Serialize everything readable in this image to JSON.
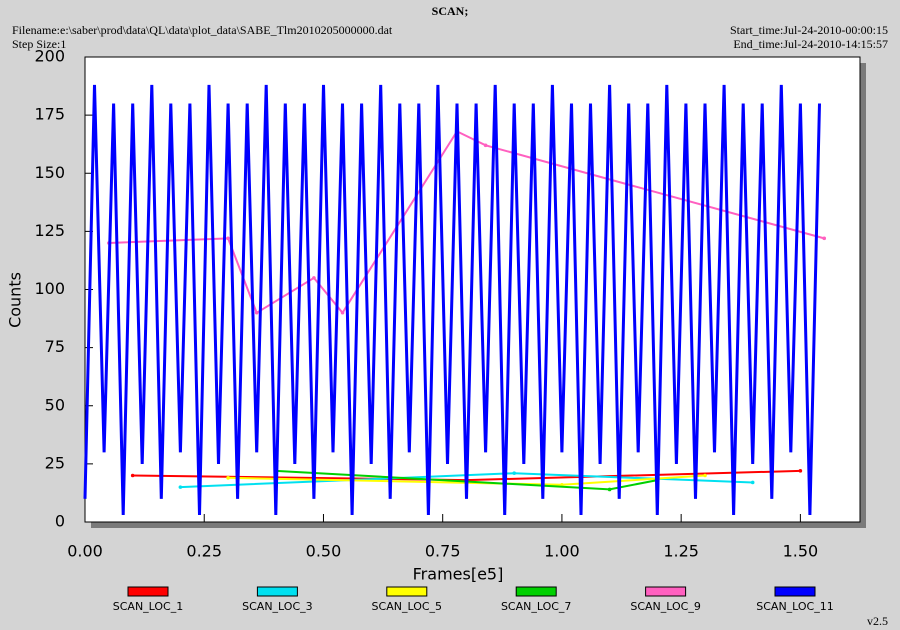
{
  "chart_data": {
    "type": "line",
    "title": "SCAN;",
    "filename": "Filename:e:\\saber\\prod\\data\\QL\\data\\plot_data\\SABE_Tlm2010205000000.dat",
    "step_size": "Step Size:1",
    "start_time": "Start_time:Jul-24-2010-00:00:15",
    "end_time": "End_time:Jul-24-2010-14:15:57",
    "version": "v2.5",
    "x_label": "Frames[e5]",
    "y_label": "Counts",
    "xlim": [
      0,
      1.625
    ],
    "ylim": [
      0,
      200
    ],
    "xticks": [
      {
        "value": 0,
        "label": "0.00"
      },
      {
        "value": 0.25,
        "label": "0.25"
      },
      {
        "value": 0.5,
        "label": "0.50"
      },
      {
        "value": 0.75,
        "label": "0.75"
      },
      {
        "value": 1,
        "label": "1.00"
      },
      {
        "value": 1.25,
        "label": "1.25"
      },
      {
        "value": 1.5,
        "label": "1.50"
      }
    ],
    "yticks": [
      0,
      25,
      50,
      75,
      100,
      125,
      150,
      175,
      200
    ],
    "series": [
      {
        "name": "SCAN_LOC_1",
        "color": "#ff0000",
        "x": [
          0.1,
          0.8,
          1.5
        ],
        "values": [
          20,
          18,
          22
        ]
      },
      {
        "name": "SCAN_LOC_3",
        "color": "#00e0f0",
        "x": [
          0.2,
          0.9,
          1.4
        ],
        "values": [
          15,
          21,
          17
        ]
      },
      {
        "name": "SCAN_LOC_5",
        "color": "#ffff00",
        "x": [
          0.3,
          1.0,
          1.3
        ],
        "values": [
          19,
          16,
          20
        ]
      },
      {
        "name": "SCAN_LOC_7",
        "color": "#00d000",
        "x": [
          0.4,
          1.1,
          1.2
        ],
        "values": [
          22,
          14,
          18
        ]
      },
      {
        "name": "SCAN_LOC_9",
        "color": "#ff60c0",
        "x": [
          0.05,
          0.3,
          0.36,
          0.48,
          0.54,
          0.78,
          0.84,
          1.55
        ],
        "values": [
          120,
          122,
          90,
          105,
          90,
          168,
          162,
          122
        ]
      },
      {
        "name": "SCAN_LOC_11",
        "color": "#0000ff",
        "x": [
          0.0,
          0.02,
          0.04,
          0.06,
          0.08,
          0.1,
          0.12,
          0.14,
          0.16,
          0.18,
          0.2,
          0.22,
          0.24,
          0.26,
          0.28,
          0.3,
          0.32,
          0.34,
          0.36,
          0.38,
          0.4,
          0.42,
          0.44,
          0.46,
          0.48,
          0.5,
          0.52,
          0.54,
          0.56,
          0.58,
          0.6,
          0.62,
          0.64,
          0.66,
          0.68,
          0.7,
          0.72,
          0.74,
          0.76,
          0.78,
          0.8,
          0.82,
          0.84,
          0.86,
          0.88,
          0.9,
          0.92,
          0.94,
          0.96,
          0.98,
          1.0,
          1.02,
          1.04,
          1.06,
          1.08,
          1.1,
          1.12,
          1.14,
          1.16,
          1.18,
          1.2,
          1.22,
          1.24,
          1.26,
          1.28,
          1.3,
          1.32,
          1.34,
          1.36,
          1.38,
          1.4,
          1.42,
          1.44,
          1.46,
          1.48,
          1.5,
          1.52,
          1.54
        ],
        "values": [
          10,
          188,
          30,
          180,
          3,
          180,
          25,
          188,
          10,
          180,
          30,
          180,
          3,
          188,
          25,
          180,
          10,
          180,
          30,
          188,
          3,
          180,
          25,
          180,
          10,
          188,
          30,
          180,
          3,
          180,
          25,
          188,
          10,
          180,
          30,
          180,
          3,
          188,
          25,
          180,
          10,
          180,
          30,
          188,
          3,
          180,
          25,
          180,
          10,
          188,
          30,
          180,
          3,
          180,
          25,
          188,
          10,
          180,
          30,
          180,
          3,
          188,
          25,
          180,
          10,
          180,
          30,
          188,
          3,
          180,
          25,
          180,
          10,
          188,
          30,
          180,
          3,
          180
        ]
      }
    ]
  }
}
